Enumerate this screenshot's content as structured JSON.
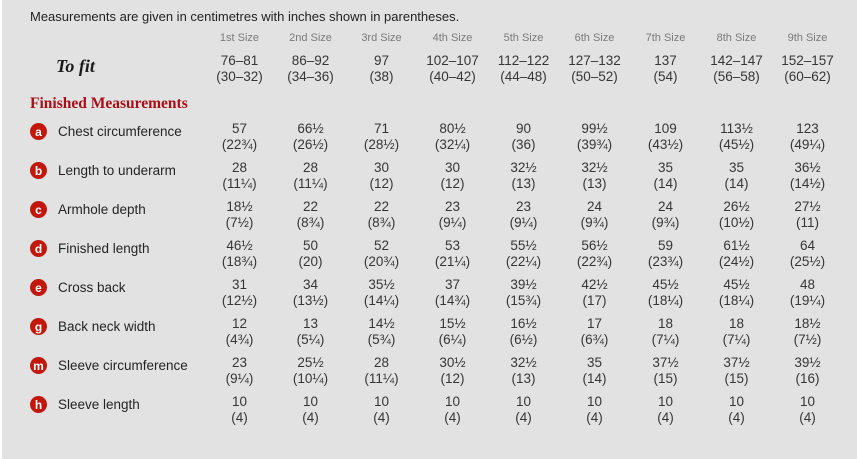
{
  "note": "Measurements are given in centimetres with inches shown in parentheses.",
  "colors": {
    "bg": "#e2e2e2",
    "badge_red": "#c3170c",
    "heading_red": "#a80f16"
  },
  "table": {
    "size_headers": [
      "1st Size",
      "2nd Size",
      "3rd Size",
      "4th Size",
      "5th Size",
      "6th Size",
      "7th Size",
      "8th Size",
      "9th Size"
    ],
    "to_fit": {
      "label": "To fit",
      "values": [
        {
          "cm": "76–81",
          "in": "(30–32)"
        },
        {
          "cm": "86–92",
          "in": "(34–36)"
        },
        {
          "cm": "97",
          "in": "(38)"
        },
        {
          "cm": "102–107",
          "in": "(40–42)"
        },
        {
          "cm": "112–122",
          "in": "(44–48)"
        },
        {
          "cm": "127–132",
          "in": "(50–52)"
        },
        {
          "cm": "137",
          "in": "(54)"
        },
        {
          "cm": "142–147",
          "in": "(56–58)"
        },
        {
          "cm": "152–157",
          "in": "(60–62)"
        }
      ]
    },
    "section_header": "Finished Measurements",
    "rows": [
      {
        "badge": "a",
        "label": "Chest circumference",
        "values": [
          {
            "cm": "57",
            "in": "(22¾)"
          },
          {
            "cm": "66½",
            "in": "(26½)"
          },
          {
            "cm": "71",
            "in": "(28½)"
          },
          {
            "cm": "80½",
            "in": "(32¼)"
          },
          {
            "cm": "90",
            "in": "(36)"
          },
          {
            "cm": "99½",
            "in": "(39¾)"
          },
          {
            "cm": "109",
            "in": "(43½)"
          },
          {
            "cm": "113½",
            "in": "(45½)"
          },
          {
            "cm": "123",
            "in": "(49¼)"
          }
        ]
      },
      {
        "badge": "b",
        "label": "Length to underarm",
        "values": [
          {
            "cm": "28",
            "in": "(11¼)"
          },
          {
            "cm": "28",
            "in": "(11¼)"
          },
          {
            "cm": "30",
            "in": "(12)"
          },
          {
            "cm": "30",
            "in": "(12)"
          },
          {
            "cm": "32½",
            "in": "(13)"
          },
          {
            "cm": "32½",
            "in": "(13)"
          },
          {
            "cm": "35",
            "in": "(14)"
          },
          {
            "cm": "35",
            "in": "(14)"
          },
          {
            "cm": "36½",
            "in": "(14½)"
          }
        ]
      },
      {
        "badge": "c",
        "label": "Armhole depth",
        "values": [
          {
            "cm": "18½",
            "in": "(7½)"
          },
          {
            "cm": "22",
            "in": "(8¾)"
          },
          {
            "cm": "22",
            "in": "(8¾)"
          },
          {
            "cm": "23",
            "in": "(9¼)"
          },
          {
            "cm": "23",
            "in": "(9¼)"
          },
          {
            "cm": "24",
            "in": "(9¾)"
          },
          {
            "cm": "24",
            "in": "(9¾)"
          },
          {
            "cm": "26½",
            "in": "(10½)"
          },
          {
            "cm": "27½",
            "in": "(11)"
          }
        ]
      },
      {
        "badge": "d",
        "label": "Finished length",
        "values": [
          {
            "cm": "46½",
            "in": "(18¾)"
          },
          {
            "cm": "50",
            "in": "(20)"
          },
          {
            "cm": "52",
            "in": "(20¾)"
          },
          {
            "cm": "53",
            "in": "(21¼)"
          },
          {
            "cm": "55½",
            "in": "(22¼)"
          },
          {
            "cm": "56½",
            "in": "(22¾)"
          },
          {
            "cm": "59",
            "in": "(23¾)"
          },
          {
            "cm": "61½",
            "in": "(24½)"
          },
          {
            "cm": "64",
            "in": "(25½)"
          }
        ]
      },
      {
        "badge": "e",
        "label": "Cross back",
        "values": [
          {
            "cm": "31",
            "in": "(12½)"
          },
          {
            "cm": "34",
            "in": "(13½)"
          },
          {
            "cm": "35½",
            "in": "(14¼)"
          },
          {
            "cm": "37",
            "in": "(14¾)"
          },
          {
            "cm": "39½",
            "in": "(15¾)"
          },
          {
            "cm": "42½",
            "in": "(17)"
          },
          {
            "cm": "45½",
            "in": "(18¼)"
          },
          {
            "cm": "45½",
            "in": "(18¼)"
          },
          {
            "cm": "48",
            "in": "(19¼)"
          }
        ]
      },
      {
        "badge": "g",
        "label": "Back neck width",
        "values": [
          {
            "cm": "12",
            "in": "(4¾)"
          },
          {
            "cm": "13",
            "in": "(5¼)"
          },
          {
            "cm": "14½",
            "in": "(5¾)"
          },
          {
            "cm": "15½",
            "in": "(6¼)"
          },
          {
            "cm": "16½",
            "in": "(6½)"
          },
          {
            "cm": "17",
            "in": "(6¾)"
          },
          {
            "cm": "18",
            "in": "(7¼)"
          },
          {
            "cm": "18",
            "in": "(7¼)"
          },
          {
            "cm": "18½",
            "in": "(7½)"
          }
        ]
      },
      {
        "badge": "m",
        "label": "Sleeve circumference",
        "values": [
          {
            "cm": "23",
            "in": "(9¼)"
          },
          {
            "cm": "25½",
            "in": "(10¼)"
          },
          {
            "cm": "28",
            "in": "(11¼)"
          },
          {
            "cm": "30½",
            "in": "(12)"
          },
          {
            "cm": "32½",
            "in": "(13)"
          },
          {
            "cm": "35",
            "in": "(14)"
          },
          {
            "cm": "37½",
            "in": "(15)"
          },
          {
            "cm": "37½",
            "in": "(15)"
          },
          {
            "cm": "39½",
            "in": "(16)"
          }
        ]
      },
      {
        "badge": "h",
        "label": "Sleeve length",
        "values": [
          {
            "cm": "10",
            "in": "(4)"
          },
          {
            "cm": "10",
            "in": "(4)"
          },
          {
            "cm": "10",
            "in": "(4)"
          },
          {
            "cm": "10",
            "in": "(4)"
          },
          {
            "cm": "10",
            "in": "(4)"
          },
          {
            "cm": "10",
            "in": "(4)"
          },
          {
            "cm": "10",
            "in": "(4)"
          },
          {
            "cm": "10",
            "in": "(4)"
          },
          {
            "cm": "10",
            "in": "(4)"
          }
        ]
      }
    ]
  }
}
